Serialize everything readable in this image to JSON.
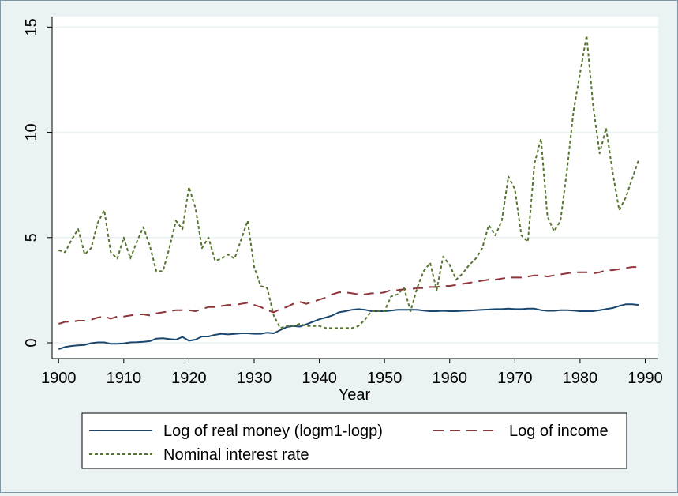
{
  "chart_data": {
    "type": "line",
    "xlabel": "Year",
    "ylabel": "",
    "xlim": [
      1899,
      1992
    ],
    "ylim": [
      -0.75,
      15.5
    ],
    "xticks": [
      "1900",
      "1910",
      "1920",
      "1930",
      "1940",
      "1950",
      "1960",
      "1970",
      "1980",
      "1990"
    ],
    "yticks": [
      "0",
      "5",
      "10",
      "15"
    ],
    "grid": true,
    "legend_position": "bottom",
    "series": [
      {
        "name": "Log of real money (logm1-logp)",
        "color": "#1a476f",
        "style": "solid",
        "x": [
          1900,
          1901,
          1902,
          1903,
          1904,
          1905,
          1906,
          1907,
          1908,
          1909,
          1910,
          1911,
          1912,
          1913,
          1914,
          1915,
          1916,
          1917,
          1918,
          1919,
          1920,
          1921,
          1922,
          1923,
          1924,
          1925,
          1926,
          1927,
          1928,
          1929,
          1930,
          1931,
          1932,
          1933,
          1934,
          1935,
          1936,
          1937,
          1938,
          1939,
          1940,
          1941,
          1942,
          1943,
          1944,
          1945,
          1946,
          1947,
          1948,
          1949,
          1950,
          1951,
          1952,
          1953,
          1954,
          1955,
          1956,
          1957,
          1958,
          1959,
          1960,
          1961,
          1962,
          1963,
          1964,
          1965,
          1966,
          1967,
          1968,
          1969,
          1970,
          1971,
          1972,
          1973,
          1974,
          1975,
          1976,
          1977,
          1978,
          1979,
          1980,
          1981,
          1982,
          1983,
          1984,
          1985,
          1986,
          1987,
          1988,
          1989
        ],
        "y": [
          -0.3,
          -0.2,
          -0.15,
          -0.12,
          -0.1,
          -0.02,
          0.02,
          0.02,
          -0.05,
          -0.05,
          -0.03,
          0.02,
          0.03,
          0.05,
          0.08,
          0.2,
          0.22,
          0.18,
          0.15,
          0.28,
          0.1,
          0.15,
          0.3,
          0.3,
          0.38,
          0.43,
          0.4,
          0.42,
          0.45,
          0.45,
          0.43,
          0.43,
          0.48,
          0.45,
          0.6,
          0.75,
          0.8,
          0.77,
          0.88,
          1.0,
          1.12,
          1.2,
          1.3,
          1.45,
          1.5,
          1.57,
          1.6,
          1.57,
          1.5,
          1.5,
          1.5,
          1.53,
          1.57,
          1.57,
          1.57,
          1.57,
          1.53,
          1.5,
          1.5,
          1.52,
          1.5,
          1.5,
          1.52,
          1.53,
          1.55,
          1.57,
          1.58,
          1.6,
          1.6,
          1.62,
          1.6,
          1.6,
          1.62,
          1.62,
          1.55,
          1.52,
          1.52,
          1.55,
          1.55,
          1.53,
          1.5,
          1.5,
          1.5,
          1.55,
          1.6,
          1.65,
          1.75,
          1.83,
          1.83,
          1.8
        ]
      },
      {
        "name": "Log of income",
        "color": "#90353b",
        "style": "dashed",
        "x": [
          1900,
          1901,
          1902,
          1903,
          1904,
          1905,
          1906,
          1907,
          1908,
          1909,
          1910,
          1911,
          1912,
          1913,
          1914,
          1915,
          1916,
          1917,
          1918,
          1919,
          1920,
          1921,
          1922,
          1923,
          1924,
          1925,
          1926,
          1927,
          1928,
          1929,
          1930,
          1931,
          1932,
          1933,
          1934,
          1935,
          1936,
          1937,
          1938,
          1939,
          1940,
          1941,
          1942,
          1943,
          1944,
          1945,
          1946,
          1947,
          1948,
          1949,
          1950,
          1951,
          1952,
          1953,
          1954,
          1955,
          1956,
          1957,
          1958,
          1959,
          1960,
          1961,
          1962,
          1963,
          1964,
          1965,
          1966,
          1967,
          1968,
          1969,
          1970,
          1971,
          1972,
          1973,
          1974,
          1975,
          1976,
          1977,
          1978,
          1979,
          1980,
          1981,
          1982,
          1983,
          1984,
          1985,
          1986,
          1987,
          1988,
          1989
        ],
        "y": [
          0.9,
          1.0,
          1.0,
          1.05,
          1.05,
          1.1,
          1.2,
          1.25,
          1.15,
          1.25,
          1.25,
          1.3,
          1.35,
          1.35,
          1.3,
          1.4,
          1.45,
          1.5,
          1.55,
          1.55,
          1.55,
          1.5,
          1.6,
          1.7,
          1.7,
          1.75,
          1.8,
          1.8,
          1.85,
          1.9,
          1.8,
          1.7,
          1.55,
          1.45,
          1.6,
          1.7,
          1.85,
          1.95,
          1.85,
          1.95,
          2.05,
          2.15,
          2.3,
          2.4,
          2.4,
          2.35,
          2.3,
          2.3,
          2.35,
          2.35,
          2.4,
          2.5,
          2.5,
          2.55,
          2.55,
          2.6,
          2.6,
          2.65,
          2.65,
          2.7,
          2.7,
          2.75,
          2.8,
          2.85,
          2.9,
          2.95,
          3.0,
          3.0,
          3.05,
          3.1,
          3.1,
          3.1,
          3.15,
          3.2,
          3.2,
          3.15,
          3.2,
          3.25,
          3.3,
          3.35,
          3.35,
          3.35,
          3.3,
          3.35,
          3.45,
          3.45,
          3.5,
          3.55,
          3.6,
          3.6
        ]
      },
      {
        "name": "Nominal interest rate",
        "color": "#55752f",
        "style": "dotted",
        "x": [
          1900,
          1901,
          1902,
          1903,
          1904,
          1905,
          1906,
          1907,
          1908,
          1909,
          1910,
          1911,
          1912,
          1913,
          1914,
          1915,
          1916,
          1917,
          1918,
          1919,
          1920,
          1921,
          1922,
          1923,
          1924,
          1925,
          1926,
          1927,
          1928,
          1929,
          1930,
          1931,
          1932,
          1933,
          1934,
          1935,
          1936,
          1937,
          1938,
          1939,
          1940,
          1941,
          1942,
          1943,
          1944,
          1945,
          1946,
          1947,
          1948,
          1949,
          1950,
          1951,
          1952,
          1953,
          1954,
          1955,
          1956,
          1957,
          1958,
          1959,
          1960,
          1961,
          1962,
          1963,
          1964,
          1965,
          1966,
          1967,
          1968,
          1969,
          1970,
          1971,
          1972,
          1973,
          1974,
          1975,
          1976,
          1977,
          1978,
          1979,
          1980,
          1981,
          1982,
          1983,
          1984,
          1985,
          1986,
          1987,
          1988,
          1989
        ],
        "y": [
          4.4,
          4.3,
          4.9,
          5.4,
          4.2,
          4.5,
          5.7,
          6.3,
          4.3,
          4.0,
          5.0,
          4.0,
          4.8,
          5.5,
          4.6,
          3.4,
          3.4,
          4.5,
          5.8,
          5.4,
          7.4,
          6.4,
          4.5,
          5.0,
          3.9,
          4.0,
          4.2,
          4.0,
          4.9,
          5.8,
          3.6,
          2.7,
          2.6,
          1.3,
          0.7,
          0.8,
          0.8,
          0.9,
          0.8,
          0.8,
          0.8,
          0.7,
          0.7,
          0.7,
          0.7,
          0.7,
          0.8,
          1.1,
          1.5,
          1.5,
          1.5,
          2.2,
          2.3,
          2.6,
          1.5,
          2.6,
          3.4,
          3.8,
          2.5,
          4.1,
          3.7,
          3.0,
          3.3,
          3.7,
          4.0,
          4.5,
          5.6,
          5.1,
          5.8,
          7.9,
          7.3,
          5.1,
          4.8,
          8.5,
          9.7,
          6.0,
          5.3,
          5.8,
          8.2,
          11.0,
          12.8,
          14.6,
          11.3,
          9.0,
          10.2,
          8.1,
          6.3,
          6.9,
          7.8,
          8.7
        ]
      }
    ]
  }
}
